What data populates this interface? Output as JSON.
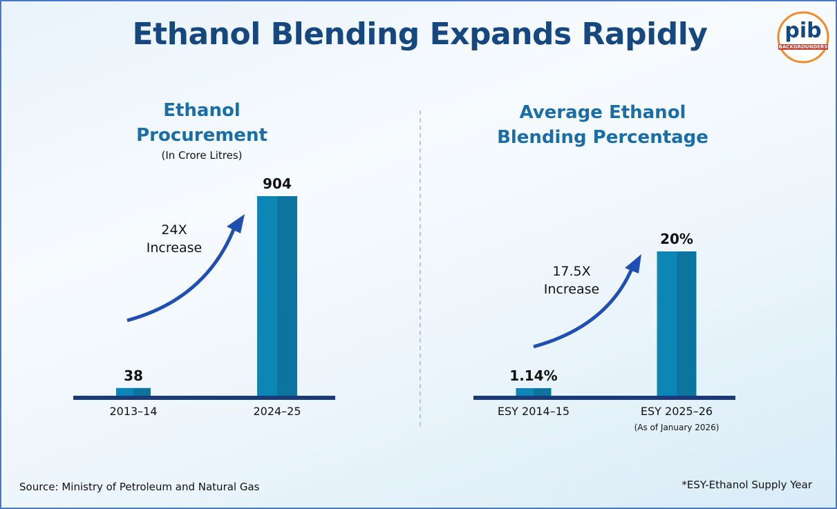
{
  "title": "Ethanol Blending Expands Rapidly",
  "logo": {
    "name": "pib",
    "tagline": "BACKGROUNDERS"
  },
  "source": "Source: Ministry of Petroleum and Natural Gas",
  "footnote": "*ESY-Ethanol Supply Year",
  "chart_data": [
    {
      "type": "bar",
      "title": "Ethanol Procurement",
      "subtitle": "(In Crore Litres)",
      "categories": [
        "2013–14",
        "2024–25"
      ],
      "values": [
        38,
        904
      ],
      "color": "#0e86b5",
      "annotation": "24X Increase"
    },
    {
      "type": "bar",
      "title": "Average Ethanol Blending Percentage",
      "categories": [
        "ESY 2014–15",
        "ESY 2025–26"
      ],
      "category_notes": [
        null,
        "(As of January 2026)"
      ],
      "values": [
        1.14,
        20
      ],
      "value_labels": [
        "1.14%",
        "20%"
      ],
      "color": "#0e86b5",
      "annotation": "17.5X Increase"
    }
  ]
}
